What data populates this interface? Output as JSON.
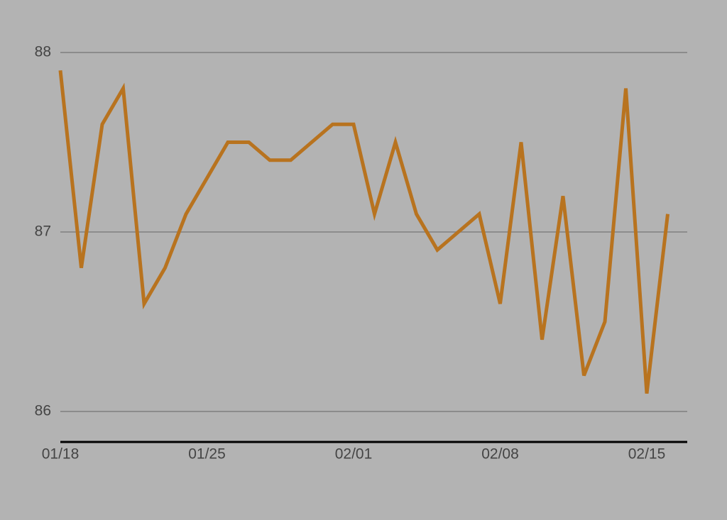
{
  "chart_data": {
    "type": "line",
    "categories": [
      "01/18",
      null,
      null,
      null,
      null,
      null,
      null,
      "01/25",
      null,
      null,
      null,
      null,
      null,
      null,
      "02/01",
      null,
      null,
      null,
      null,
      null,
      null,
      "02/08",
      null,
      null,
      null,
      null,
      null,
      null,
      "02/15",
      null
    ],
    "series": [
      {
        "color": "#b8731f",
        "values": [
          87.9,
          86.8,
          87.6,
          87.8,
          86.6,
          86.8,
          87.1,
          87.3,
          87.5,
          87.5,
          87.4,
          87.4,
          87.5,
          87.6,
          87.6,
          87.1,
          87.5,
          87.1,
          86.9,
          87.0,
          87.1,
          86.6,
          87.5,
          86.4,
          87.2,
          86.2,
          86.5,
          87.8,
          86.1,
          87.1
        ]
      }
    ],
    "ylim": [
      85.83,
      88.2
    ],
    "yticks": [
      86,
      87,
      88
    ],
    "grid": true
  }
}
